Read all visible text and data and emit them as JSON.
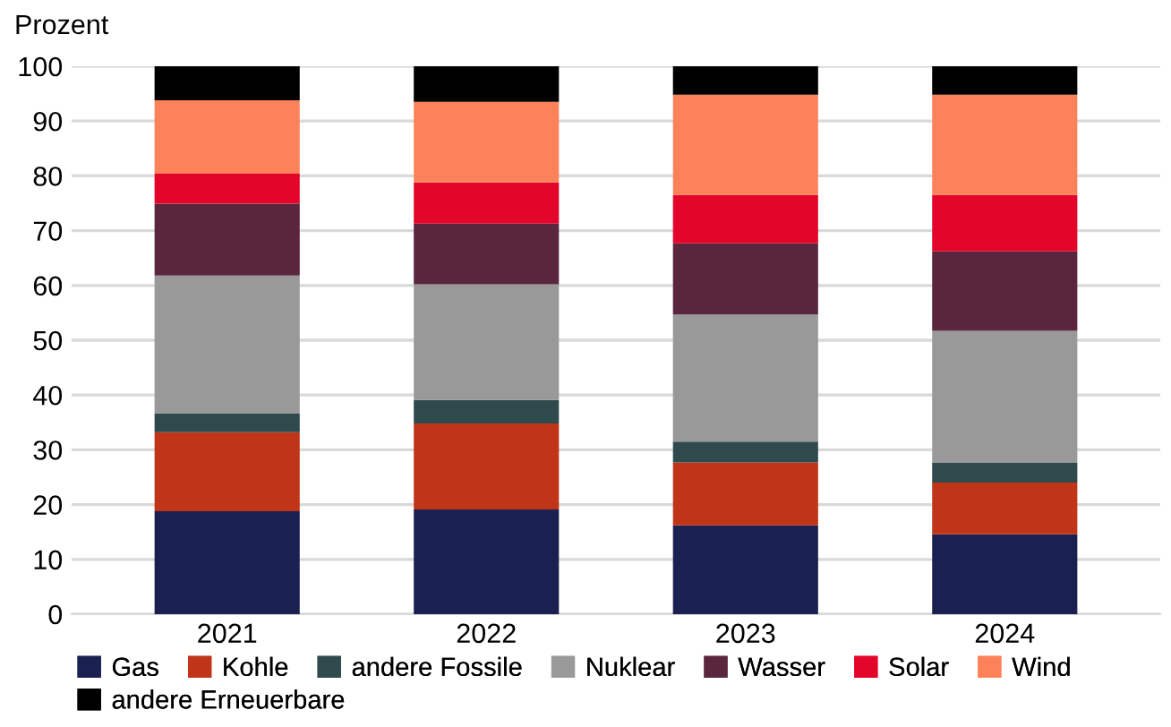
{
  "chart_data": {
    "type": "bar",
    "stacked": true,
    "ylabel": "Prozent",
    "categories": [
      "2021",
      "2022",
      "2023",
      "2024"
    ],
    "series": [
      {
        "name": "Gas",
        "color": "#1a2050",
        "values": [
          18.8,
          19.1,
          16.2,
          14.6
        ]
      },
      {
        "name": "Kohle",
        "color": "#c03418",
        "values": [
          14.4,
          15.7,
          11.5,
          9.4
        ]
      },
      {
        "name": "andere Fossile",
        "color": "#2f4a4d",
        "values": [
          3.5,
          4.3,
          3.8,
          3.6
        ]
      },
      {
        "name": "Nuklear",
        "color": "#989998",
        "values": [
          25.1,
          21.1,
          23.2,
          24.1
        ]
      },
      {
        "name": "Wasser",
        "color": "#5a263e",
        "values": [
          13.1,
          11.1,
          13.0,
          14.5
        ]
      },
      {
        "name": "Solar",
        "color": "#e4052a",
        "values": [
          5.5,
          7.5,
          8.8,
          10.3
        ]
      },
      {
        "name": "Wind",
        "color": "#fd825a",
        "values": [
          13.4,
          14.7,
          18.3,
          18.3
        ]
      },
      {
        "name": "andere Erneuerbare",
        "color": "#000000",
        "values": [
          6.2,
          6.5,
          5.2,
          5.2
        ]
      }
    ],
    "ylim": [
      0,
      100
    ],
    "yticks": [
      0,
      10,
      20,
      30,
      40,
      50,
      60,
      70,
      80,
      90,
      100
    ],
    "grid": "y",
    "legend": "bottom"
  }
}
